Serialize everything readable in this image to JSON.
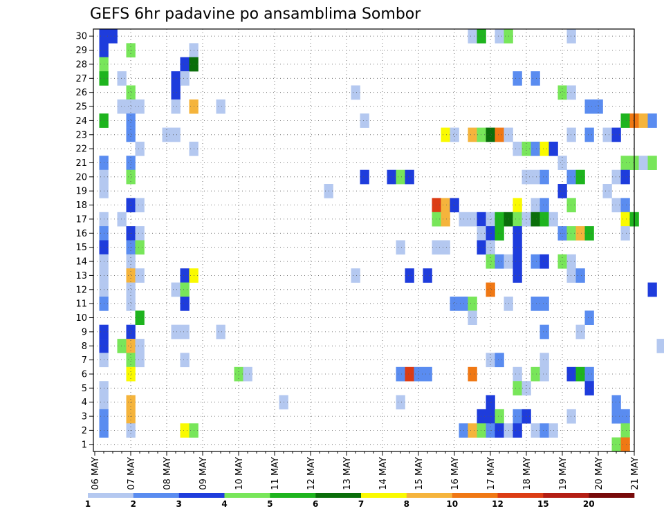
{
  "chart_data": {
    "type": "heatmap",
    "title": "GEFS 6hr padavine po ansamblima Sombor",
    "x_tick_labels": [
      "06 MAY",
      "07 MAY",
      "08 MAY",
      "09 MAY",
      "10 MAY",
      "11 MAY",
      "12 MAY",
      "13 MAY",
      "14 MAY",
      "15 MAY",
      "16 MAY",
      "17 MAY",
      "18 MAY",
      "19 MAY",
      "20 MAY",
      "21 MAY"
    ],
    "y_tick_labels": [
      "1",
      "2",
      "3",
      "4",
      "5",
      "6",
      "7",
      "8",
      "9",
      "10",
      "11",
      "12",
      "13",
      "14",
      "15",
      "16",
      "17",
      "18",
      "19",
      "20",
      "21",
      "22",
      "23",
      "24",
      "25",
      "26",
      "27",
      "28",
      "29",
      "30"
    ],
    "x_unit": "days since 06 MAY, 6-hourly steps",
    "colorbar": {
      "levels": [
        "1",
        "2",
        "3",
        "4",
        "5",
        "6",
        "7",
        "8",
        "10",
        "12",
        "15",
        "20"
      ],
      "colors": [
        "#b4c8f0",
        "#5a8cf0",
        "#1e3cdc",
        "#78e65a",
        "#1eb41e",
        "#0a6e0a",
        "#fafa00",
        "#f5b43c",
        "#f07814",
        "#dc3c14",
        "#b41e14",
        "#780a0a"
      ]
    },
    "grid": "dotted",
    "cells": [
      [
        0.25,
        30,
        3
      ],
      [
        0.5,
        30,
        3
      ],
      [
        10.5,
        30,
        1
      ],
      [
        10.75,
        30,
        5
      ],
      [
        11.25,
        30,
        1
      ],
      [
        11.5,
        30,
        4
      ],
      [
        13.25,
        30,
        1
      ],
      [
        0.25,
        29,
        3
      ],
      [
        1,
        29,
        4
      ],
      [
        2.75,
        29,
        1
      ],
      [
        0.25,
        28,
        4
      ],
      [
        2.5,
        28,
        3
      ],
      [
        2.75,
        28,
        6
      ],
      [
        0.25,
        27,
        5
      ],
      [
        0.75,
        27,
        1
      ],
      [
        2.25,
        27,
        3
      ],
      [
        2.5,
        27,
        1
      ],
      [
        11.75,
        27,
        2
      ],
      [
        12.25,
        27,
        2
      ],
      [
        1,
        26,
        4
      ],
      [
        2.25,
        26,
        3
      ],
      [
        7.25,
        26,
        1
      ],
      [
        13,
        26,
        4
      ],
      [
        13.25,
        26,
        1
      ],
      [
        0.75,
        25,
        1
      ],
      [
        1,
        25,
        1
      ],
      [
        1.25,
        25,
        1
      ],
      [
        2.25,
        25,
        1
      ],
      [
        2.75,
        25,
        8
      ],
      [
        3.5,
        25,
        1
      ],
      [
        13.75,
        25,
        2
      ],
      [
        14,
        25,
        2
      ],
      [
        0.25,
        24,
        5
      ],
      [
        1,
        24,
        2
      ],
      [
        7.5,
        24,
        1
      ],
      [
        14.75,
        24,
        5
      ],
      [
        15,
        24,
        9
      ],
      [
        15.25,
        24,
        8
      ],
      [
        15.5,
        24,
        2
      ],
      [
        1,
        23,
        2
      ],
      [
        2,
        23,
        1
      ],
      [
        2.25,
        23,
        1
      ],
      [
        9.75,
        23,
        7
      ],
      [
        10,
        23,
        1
      ],
      [
        10.5,
        23,
        8
      ],
      [
        10.75,
        23,
        4
      ],
      [
        11,
        23,
        6
      ],
      [
        11.25,
        23,
        9
      ],
      [
        11.5,
        23,
        1
      ],
      [
        13.25,
        23,
        1
      ],
      [
        13.75,
        23,
        2
      ],
      [
        14.25,
        23,
        1
      ],
      [
        14.5,
        23,
        3
      ],
      [
        1.25,
        22,
        1
      ],
      [
        2.75,
        22,
        1
      ],
      [
        11.75,
        22,
        1
      ],
      [
        12,
        22,
        4
      ],
      [
        12.25,
        22,
        2
      ],
      [
        12.5,
        22,
        7
      ],
      [
        12.75,
        22,
        3
      ],
      [
        0.25,
        21,
        2
      ],
      [
        1,
        21,
        2
      ],
      [
        13,
        21,
        1
      ],
      [
        14.75,
        21,
        4
      ],
      [
        15,
        21,
        4
      ],
      [
        15.25,
        21,
        1
      ],
      [
        15.5,
        21,
        4
      ],
      [
        0.25,
        20,
        1
      ],
      [
        1,
        20,
        4
      ],
      [
        7.5,
        20,
        3
      ],
      [
        8.25,
        20,
        3
      ],
      [
        8.5,
        20,
        4
      ],
      [
        8.75,
        20,
        3
      ],
      [
        12,
        20,
        1
      ],
      [
        12.25,
        20,
        1
      ],
      [
        12.5,
        20,
        2
      ],
      [
        13.25,
        20,
        2
      ],
      [
        13.5,
        20,
        5
      ],
      [
        14.5,
        20,
        1
      ],
      [
        14.75,
        20,
        3
      ],
      [
        0.25,
        19,
        1
      ],
      [
        6.5,
        19,
        1
      ],
      [
        13,
        19,
        3
      ],
      [
        14.25,
        19,
        1
      ],
      [
        1,
        18,
        3
      ],
      [
        1.25,
        18,
        1
      ],
      [
        9.5,
        18,
        10
      ],
      [
        9.75,
        18,
        8
      ],
      [
        10,
        18,
        3
      ],
      [
        11.75,
        18,
        7
      ],
      [
        12.25,
        18,
        1
      ],
      [
        12.5,
        18,
        2
      ],
      [
        13.25,
        18,
        4
      ],
      [
        14.5,
        18,
        1
      ],
      [
        14.75,
        18,
        2
      ],
      [
        0.25,
        17,
        1
      ],
      [
        0.75,
        17,
        1
      ],
      [
        9.5,
        17,
        4
      ],
      [
        9.75,
        17,
        8
      ],
      [
        10.25,
        17,
        1
      ],
      [
        10.5,
        17,
        1
      ],
      [
        10.75,
        17,
        3
      ],
      [
        11,
        17,
        1
      ],
      [
        11.25,
        17,
        5
      ],
      [
        11.5,
        17,
        6
      ],
      [
        11.75,
        17,
        4
      ],
      [
        12,
        17,
        1
      ],
      [
        12.25,
        17,
        6
      ],
      [
        12.5,
        17,
        5
      ],
      [
        12.75,
        17,
        1
      ],
      [
        14.75,
        17,
        7
      ],
      [
        15,
        17,
        5
      ],
      [
        0.25,
        16,
        2
      ],
      [
        1,
        16,
        3
      ],
      [
        1.25,
        16,
        1
      ],
      [
        10.75,
        16,
        1
      ],
      [
        11,
        16,
        3
      ],
      [
        11.25,
        16,
        5
      ],
      [
        11.75,
        16,
        3
      ],
      [
        13,
        16,
        2
      ],
      [
        13.25,
        16,
        4
      ],
      [
        13.5,
        16,
        8
      ],
      [
        13.75,
        16,
        5
      ],
      [
        14.75,
        16,
        1
      ],
      [
        0.25,
        15,
        3
      ],
      [
        1,
        15,
        2
      ],
      [
        1.25,
        15,
        4
      ],
      [
        8.5,
        15,
        1
      ],
      [
        9.5,
        15,
        1
      ],
      [
        9.75,
        15,
        1
      ],
      [
        10.75,
        15,
        3
      ],
      [
        11,
        15,
        1
      ],
      [
        11.75,
        15,
        3
      ],
      [
        0.25,
        14,
        1
      ],
      [
        1,
        14,
        1
      ],
      [
        11,
        14,
        4
      ],
      [
        11.25,
        14,
        2
      ],
      [
        11.5,
        14,
        1
      ],
      [
        11.75,
        14,
        3
      ],
      [
        12.25,
        14,
        2
      ],
      [
        12.5,
        14,
        3
      ],
      [
        13,
        14,
        4
      ],
      [
        13.25,
        14,
        1
      ],
      [
        0.25,
        13,
        1
      ],
      [
        1,
        13,
        8
      ],
      [
        1.25,
        13,
        1
      ],
      [
        2.5,
        13,
        3
      ],
      [
        2.75,
        13,
        7
      ],
      [
        7.25,
        13,
        1
      ],
      [
        8.75,
        13,
        3
      ],
      [
        9.25,
        13,
        3
      ],
      [
        11.75,
        13,
        3
      ],
      [
        13.25,
        13,
        1
      ],
      [
        13.5,
        13,
        2
      ],
      [
        0.25,
        12,
        1
      ],
      [
        1,
        12,
        1
      ],
      [
        2.25,
        12,
        1
      ],
      [
        2.5,
        12,
        4
      ],
      [
        11,
        12,
        9
      ],
      [
        15.5,
        12,
        3
      ],
      [
        0.25,
        11,
        2
      ],
      [
        1,
        11,
        1
      ],
      [
        2.5,
        11,
        3
      ],
      [
        10,
        11,
        2
      ],
      [
        10.25,
        11,
        2
      ],
      [
        10.5,
        11,
        4
      ],
      [
        11.5,
        11,
        1
      ],
      [
        12.25,
        11,
        2
      ],
      [
        12.5,
        11,
        2
      ],
      [
        1.25,
        10,
        5
      ],
      [
        10.5,
        10,
        1
      ],
      [
        13.75,
        10,
        2
      ],
      [
        0.25,
        9,
        3
      ],
      [
        1,
        9,
        3
      ],
      [
        2.25,
        9,
        1
      ],
      [
        2.5,
        9,
        1
      ],
      [
        3.5,
        9,
        1
      ],
      [
        12.5,
        9,
        2
      ],
      [
        13.5,
        9,
        1
      ],
      [
        0.25,
        8,
        3
      ],
      [
        0.75,
        8,
        4
      ],
      [
        1,
        8,
        8
      ],
      [
        1.25,
        8,
        1
      ],
      [
        15.75,
        8,
        1
      ],
      [
        0.25,
        7,
        1
      ],
      [
        1,
        7,
        4
      ],
      [
        1.25,
        7,
        1
      ],
      [
        2.5,
        7,
        1
      ],
      [
        11,
        7,
        1
      ],
      [
        11.25,
        7,
        2
      ],
      [
        12.5,
        7,
        1
      ],
      [
        1,
        6,
        7
      ],
      [
        4,
        6,
        4
      ],
      [
        4.25,
        6,
        1
      ],
      [
        8.5,
        6,
        2
      ],
      [
        8.75,
        6,
        10
      ],
      [
        9,
        6,
        2
      ],
      [
        9.25,
        6,
        2
      ],
      [
        10.5,
        6,
        9
      ],
      [
        11.75,
        6,
        1
      ],
      [
        12.25,
        6,
        4
      ],
      [
        12.5,
        6,
        1
      ],
      [
        13.25,
        6,
        3
      ],
      [
        13.5,
        6,
        5
      ],
      [
        13.75,
        6,
        2
      ],
      [
        0.25,
        5,
        1
      ],
      [
        11.75,
        5,
        4
      ],
      [
        12,
        5,
        1
      ],
      [
        13.75,
        5,
        3
      ],
      [
        0.25,
        4,
        1
      ],
      [
        1,
        4,
        8
      ],
      [
        5.25,
        4,
        1
      ],
      [
        8.5,
        4,
        1
      ],
      [
        11,
        4,
        3
      ],
      [
        14.5,
        4,
        2
      ],
      [
        0.25,
        3,
        2
      ],
      [
        1,
        3,
        8
      ],
      [
        10.75,
        3,
        3
      ],
      [
        11,
        3,
        3
      ],
      [
        11.25,
        3,
        4
      ],
      [
        11.75,
        3,
        2
      ],
      [
        12,
        3,
        3
      ],
      [
        13.25,
        3,
        1
      ],
      [
        14.5,
        3,
        2
      ],
      [
        14.75,
        3,
        2
      ],
      [
        0.25,
        2,
        2
      ],
      [
        1,
        2,
        1
      ],
      [
        2.5,
        2,
        7
      ],
      [
        2.75,
        2,
        4
      ],
      [
        10.25,
        2,
        2
      ],
      [
        10.5,
        2,
        8
      ],
      [
        10.75,
        2,
        4
      ],
      [
        11,
        2,
        2
      ],
      [
        11.25,
        2,
        3
      ],
      [
        11.5,
        2,
        1
      ],
      [
        11.75,
        2,
        3
      ],
      [
        12.25,
        2,
        1
      ],
      [
        12.5,
        2,
        2
      ],
      [
        12.75,
        2,
        1
      ],
      [
        14.75,
        2,
        4
      ],
      [
        14.5,
        1,
        4
      ],
      [
        14.75,
        1,
        9
      ]
    ]
  }
}
